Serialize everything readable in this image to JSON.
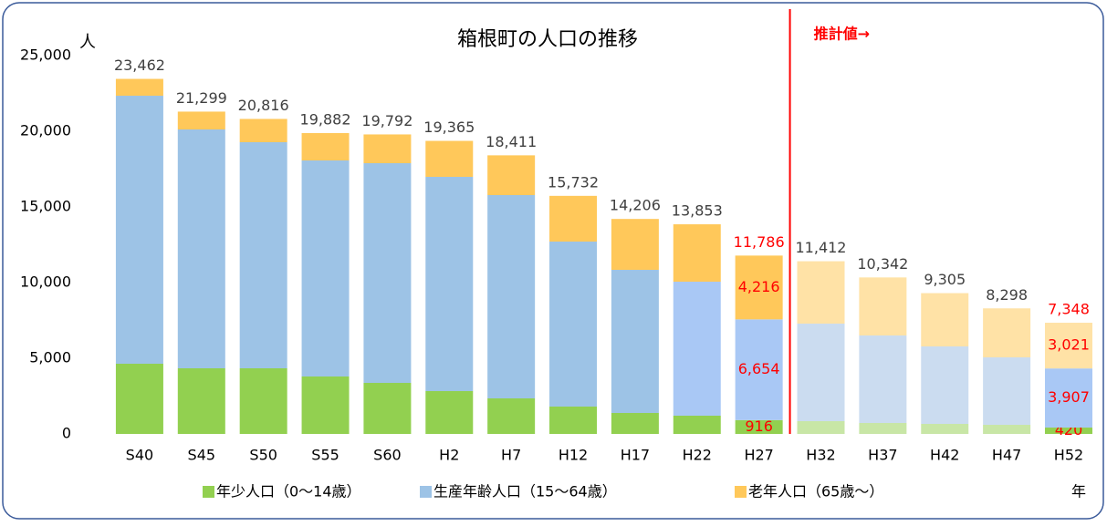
{
  "chart_data": {
    "type": "stacked_bar",
    "title": "箱根町の人口の推移",
    "y_unit_label": "人",
    "x_unit_label": "年",
    "annotation": {
      "text": "推計値→",
      "after": "H27",
      "color": "#ff0000"
    },
    "categories": [
      "S40",
      "S45",
      "S50",
      "S55",
      "S60",
      "H2",
      "H7",
      "H12",
      "H17",
      "H22",
      "H27",
      "H32",
      "H37",
      "H42",
      "H47",
      "H52"
    ],
    "totals": [
      23462,
      21299,
      20816,
      19882,
      19792,
      19365,
      18411,
      15732,
      14206,
      13853,
      11786,
      11412,
      10342,
      9305,
      8298,
      7348
    ],
    "total_labels": [
      "23,462",
      "21,299",
      "20,816",
      "19,882",
      "19,792",
      "19,365",
      "18,411",
      "15,732",
      "14,206",
      "13,853",
      "11,786",
      "11,412",
      "10,342",
      "9,305",
      "8,298",
      "7,348"
    ],
    "highlighted": [
      "H27",
      "H52"
    ],
    "highlight_color": "#ff0000",
    "label_color": "#404040",
    "series": [
      {
        "name": "年少人口（0～14歳）",
        "color": "#92d050",
        "colors": [
          "#92d050",
          "#92d050",
          "#92d050",
          "#92d050",
          "#92d050",
          "#92d050",
          "#92d050",
          "#92d050",
          "#92d050",
          "#92d050",
          "#92d050",
          "#c8e6a6",
          "#c8e6a6",
          "#c8e6a6",
          "#c8e6a6",
          "#92d050"
        ],
        "values": [
          4638,
          4337,
          4337,
          3795,
          3373,
          2831,
          2349,
          1807,
          1386,
          1205,
          916,
          843,
          723,
          663,
          602,
          420
        ],
        "value_labels": [
          null,
          null,
          null,
          null,
          null,
          null,
          null,
          null,
          null,
          null,
          "916",
          null,
          null,
          null,
          null,
          "420"
        ]
      },
      {
        "name": "生産年齢人口（15～64歳）",
        "color": "#9dc3e6",
        "colors": [
          "#9dc3e6",
          "#9dc3e6",
          "#9dc3e6",
          "#9dc3e6",
          "#9dc3e6",
          "#9dc3e6",
          "#9dc3e6",
          "#9dc3e6",
          "#9dc3e6",
          "#a9c8f5",
          "#a9c8f5",
          "#cbdcf0",
          "#cbdcf0",
          "#cbdcf0",
          "#cbdcf0",
          "#a9c8f5"
        ],
        "values": [
          17711,
          15783,
          14940,
          14277,
          14518,
          14157,
          13434,
          10904,
          9457,
          8855,
          6654,
          6446,
          5783,
          5120,
          4458,
          3907
        ],
        "value_labels": [
          null,
          null,
          null,
          null,
          null,
          null,
          null,
          null,
          null,
          null,
          "6,654",
          null,
          null,
          null,
          null,
          "3,907"
        ]
      },
      {
        "name": "老年人口（65歳～）",
        "color": "#ffc85a",
        "colors": [
          "#ffc85a",
          "#ffc85a",
          "#ffc85a",
          "#ffc85a",
          "#ffc85a",
          "#ffc85a",
          "#ffc85a",
          "#ffc85a",
          "#ffc85a",
          "#ffc85a",
          "#ffc85a",
          "#ffe2a6",
          "#ffe2a6",
          "#ffe2a6",
          "#ffe2a6",
          "#ffe2a6"
        ],
        "values": [
          1113,
          1179,
          1539,
          1810,
          1901,
          2377,
          2628,
          3021,
          3363,
          3793,
          4216,
          4123,
          3836,
          3522,
          3238,
          3021
        ],
        "value_labels": [
          null,
          null,
          null,
          null,
          null,
          null,
          null,
          null,
          null,
          null,
          "4,216",
          null,
          null,
          null,
          null,
          "3,021"
        ]
      }
    ],
    "ylim": [
      0,
      25000
    ],
    "yticks": [
      0,
      {
        "value": 5000,
        "label": "5,000"
      },
      {
        "value": 10000,
        "label": "10,000"
      },
      {
        "value": 15000,
        "label": "15,000"
      },
      {
        "value": 20000,
        "label": "20,000"
      },
      {
        "value": 25000,
        "label": "25,000"
      }
    ],
    "grid": false
  }
}
